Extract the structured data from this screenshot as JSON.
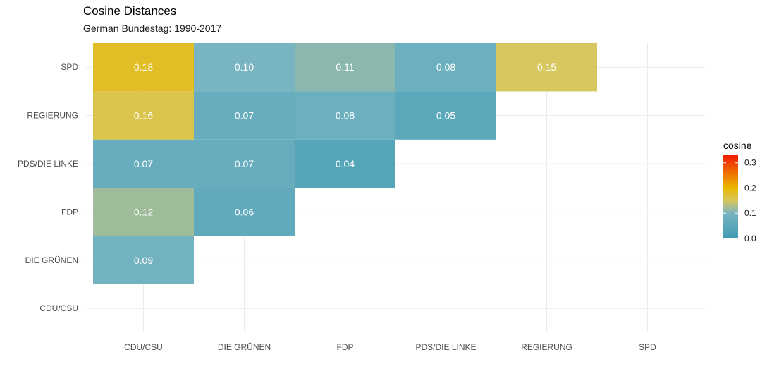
{
  "chart_data": {
    "type": "heatmap",
    "title": "Cosine Distances",
    "subtitle": "German Bundestag: 1990-2017",
    "x_categories": [
      "CDU/CSU",
      "DIE GRÜNEN",
      "FDP",
      "PDS/DIE LINKE",
      "REGIERUNG",
      "SPD"
    ],
    "y_categories": [
      "CDU/CSU",
      "DIE GRÜNEN",
      "FDP",
      "PDS/DIE LINKE",
      "REGIERUNG",
      "SPD"
    ],
    "cells": [
      {
        "x": "CDU/CSU",
        "y": "SPD",
        "value": 0.18,
        "label": "0.18"
      },
      {
        "x": "DIE GRÜNEN",
        "y": "SPD",
        "value": 0.1,
        "label": "0.10"
      },
      {
        "x": "FDP",
        "y": "SPD",
        "value": 0.11,
        "label": "0.11"
      },
      {
        "x": "PDS/DIE LINKE",
        "y": "SPD",
        "value": 0.08,
        "label": "0.08"
      },
      {
        "x": "REGIERUNG",
        "y": "SPD",
        "value": 0.15,
        "label": "0.15"
      },
      {
        "x": "CDU/CSU",
        "y": "REGIERUNG",
        "value": 0.16,
        "label": "0.16"
      },
      {
        "x": "DIE GRÜNEN",
        "y": "REGIERUNG",
        "value": 0.07,
        "label": "0.07"
      },
      {
        "x": "FDP",
        "y": "REGIERUNG",
        "value": 0.08,
        "label": "0.08"
      },
      {
        "x": "PDS/DIE LINKE",
        "y": "REGIERUNG",
        "value": 0.05,
        "label": "0.05"
      },
      {
        "x": "CDU/CSU",
        "y": "PDS/DIE LINKE",
        "value": 0.07,
        "label": "0.07"
      },
      {
        "x": "DIE GRÜNEN",
        "y": "PDS/DIE LINKE",
        "value": 0.07,
        "label": "0.07"
      },
      {
        "x": "FDP",
        "y": "PDS/DIE LINKE",
        "value": 0.04,
        "label": "0.04"
      },
      {
        "x": "CDU/CSU",
        "y": "FDP",
        "value": 0.12,
        "label": "0.12"
      },
      {
        "x": "DIE GRÜNEN",
        "y": "FDP",
        "value": 0.06,
        "label": "0.06"
      },
      {
        "x": "CDU/CSU",
        "y": "DIE GRÜNEN",
        "value": 0.09,
        "label": "0.09"
      }
    ],
    "legend": {
      "title": "cosine",
      "placement": "right",
      "range": [
        0,
        0.33
      ],
      "ticks": [
        {
          "value": 0.0,
          "label": "0.0"
        },
        {
          "value": 0.1,
          "label": "0.1"
        },
        {
          "value": 0.2,
          "label": "0.2"
        },
        {
          "value": 0.3,
          "label": "0.3"
        }
      ],
      "color_stops": [
        {
          "value": 0.0,
          "color": "#3e9bb3"
        },
        {
          "value": 0.1,
          "color": "#78b4c2"
        },
        {
          "value": 0.15,
          "color": "#d7c75e"
        },
        {
          "value": 0.2,
          "color": "#e8b800"
        },
        {
          "value": 0.33,
          "color": "#f21a00"
        }
      ]
    },
    "grid": true
  }
}
